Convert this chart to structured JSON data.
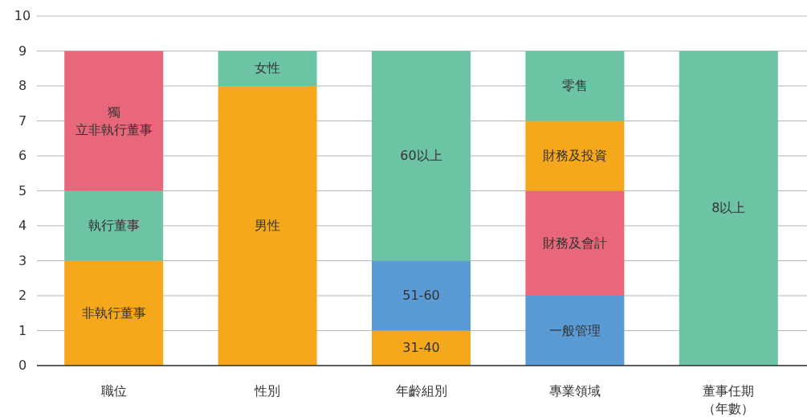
{
  "chart_data": {
    "type": "bar",
    "stacked": true,
    "categories": [
      "職位",
      "性別",
      "年齡組別",
      "專業領域",
      "董事任期（年數）"
    ],
    "ylim": [
      0,
      10
    ],
    "yticks": [
      0,
      1,
      2,
      3,
      4,
      5,
      6,
      7,
      8,
      9,
      10
    ],
    "grid": "y",
    "series": [
      {
        "name": "非執行董事",
        "color": "#f5a81c",
        "values": [
          3,
          null,
          null,
          null,
          null
        ]
      },
      {
        "name": "執行董事",
        "color": "#6cc4a4",
        "values": [
          2,
          null,
          null,
          null,
          null
        ]
      },
      {
        "name": "獨立非執行董事",
        "color": "#e8677a",
        "values": [
          4,
          null,
          null,
          null,
          null
        ]
      },
      {
        "name": "男性",
        "color": "#f5a81c",
        "values": [
          null,
          8,
          null,
          null,
          null
        ]
      },
      {
        "name": "女性",
        "color": "#6cc4a4",
        "values": [
          null,
          1,
          null,
          null,
          null
        ]
      },
      {
        "name": "31-40",
        "color": "#f5a81c",
        "values": [
          null,
          null,
          1,
          null,
          null
        ]
      },
      {
        "name": "51-60",
        "color": "#5b9bd5",
        "values": [
          null,
          null,
          2,
          null,
          null
        ]
      },
      {
        "name": "60以上",
        "color": "#6cc4a4",
        "values": [
          null,
          null,
          6,
          null,
          null
        ]
      },
      {
        "name": "一般管理",
        "color": "#5b9bd5",
        "values": [
          null,
          null,
          null,
          2,
          null
        ]
      },
      {
        "name": "財務及會計",
        "color": "#e8677a",
        "values": [
          null,
          null,
          null,
          3,
          null
        ]
      },
      {
        "name": "財務及投資",
        "color": "#f5a81c",
        "values": [
          null,
          null,
          null,
          2,
          null
        ]
      },
      {
        "name": "零售",
        "color": "#6cc4a4",
        "values": [
          null,
          null,
          null,
          2,
          null
        ]
      },
      {
        "name": "8以上",
        "color": "#6cc4a4",
        "values": [
          null,
          null,
          null,
          null,
          9
        ]
      }
    ]
  }
}
